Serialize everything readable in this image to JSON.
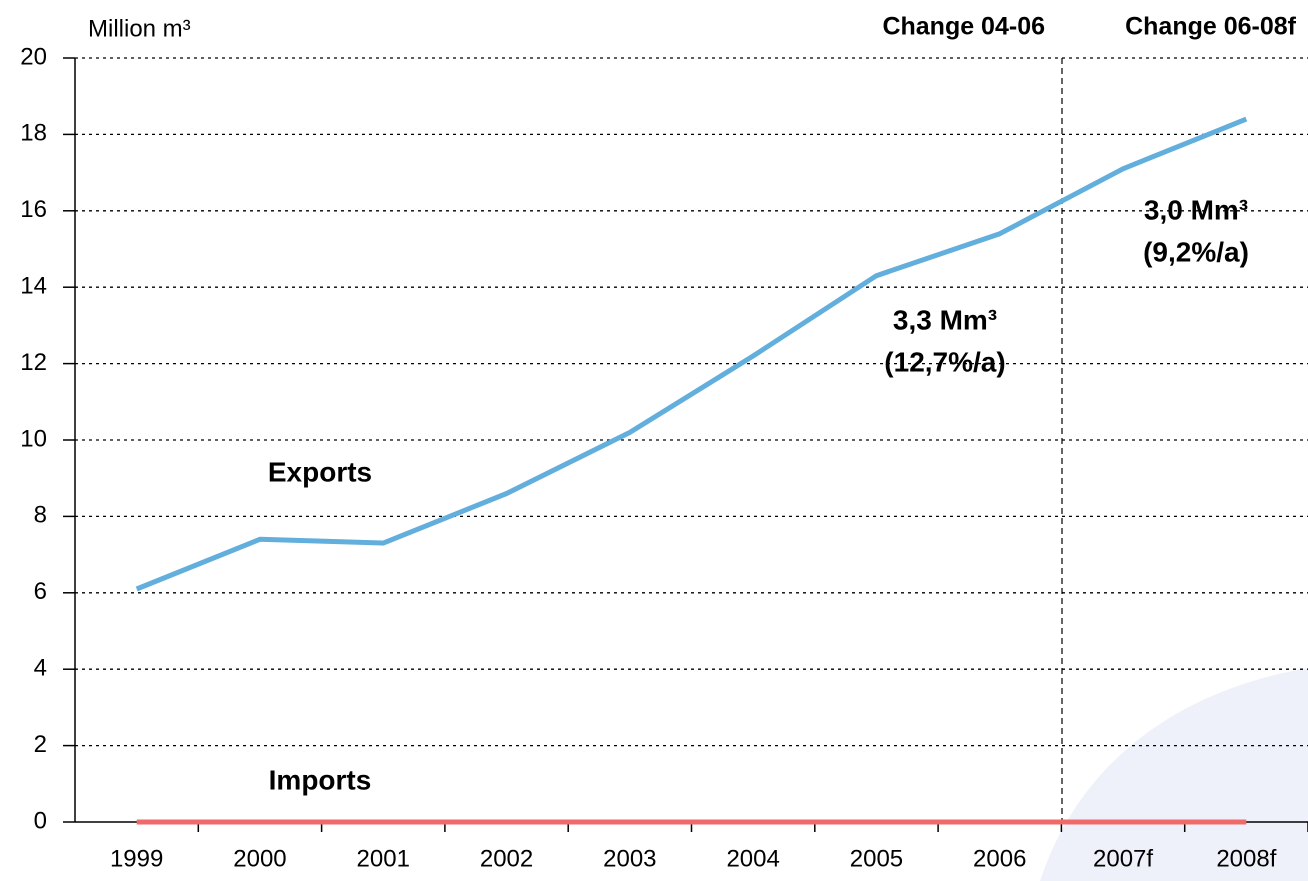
{
  "chart_data": {
    "type": "line",
    "y_label": "Million m³",
    "headers": [
      "Change 04-06",
      "Change 06-08f"
    ],
    "categories": [
      "1999",
      "2000",
      "2001",
      "2002",
      "2003",
      "2004",
      "2005",
      "2006",
      "2007f",
      "2008f"
    ],
    "series": [
      {
        "name": "Exports",
        "color": "#62aedc",
        "values": [
          6.1,
          7.4,
          7.3,
          8.6,
          10.2,
          12.2,
          14.3,
          15.4,
          17.1,
          18.4
        ]
      },
      {
        "name": "Imports",
        "color": "#f06a6a",
        "values": [
          0,
          0,
          0,
          0,
          0,
          0,
          0,
          0,
          0,
          0
        ]
      }
    ],
    "annotations": [
      "3,3 Mm³",
      "(12,7%/a)",
      "3,0 Mm³",
      "(9,2%/a)"
    ],
    "ylim": [
      0,
      20
    ],
    "yticks": [
      0,
      2,
      4,
      6,
      8,
      10,
      12,
      14,
      16,
      18,
      20
    ],
    "grid": true
  }
}
